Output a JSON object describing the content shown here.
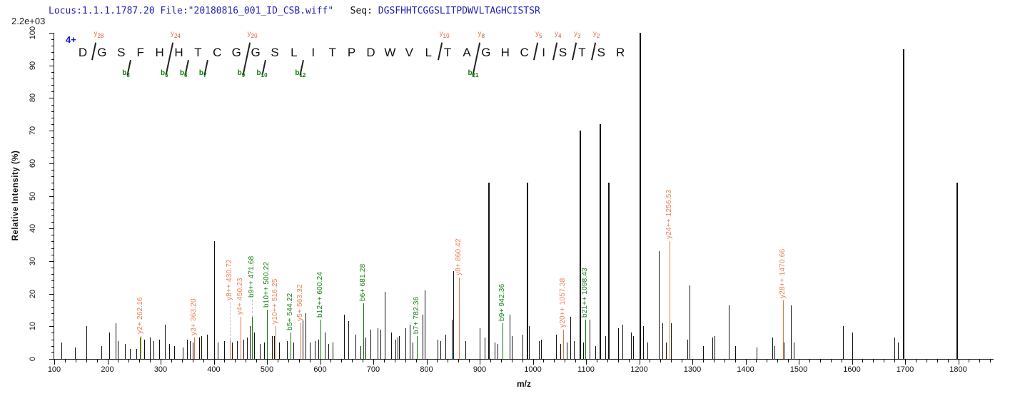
{
  "header": {
    "locus": "Locus:1.1.1.1787.20 File:\"20180816_001_ID_CSB.wiff\"",
    "seq_label": "Seq:",
    "sequence": "DGSFHHTCGGSLITPDWVLTAGHCISTSR"
  },
  "chart_data": {
    "type": "bar",
    "subtype": "ms2_peptide_fragmentation_spectrum",
    "title": "",
    "xlabel": "m/z",
    "ylabel": "Relative  Intensity  (%)",
    "intensity_scale": "2.2e+03",
    "precursor_charge": "4+",
    "peptide": "DGSFHHTCGGSLITPDWVLTAGHCISTSR",
    "xlim": [
      100,
      1865
    ],
    "ylim": [
      0,
      100
    ],
    "x_major_ticks": {
      "start": 100,
      "end": 1800,
      "step": 100
    },
    "x_minor_tick_step": 20,
    "y_major_tick_step": 10,
    "y_minor_tick_step": 2,
    "grid": "off",
    "colors": {
      "peak": "#111111",
      "y_ion_line": "#e07840",
      "y_ion_text": "#ee8055",
      "b_ion_line": "#0e7a0e",
      "b_ion_text": "#158015",
      "header_blue": "#2323b8",
      "charge_blue": "#1515d6",
      "leader": "#b9c2d2"
    },
    "sequence_markers": {
      "y_ions": [
        {
          "after_residue": 1,
          "ion": "y",
          "num": "28"
        },
        {
          "after_residue": 5,
          "ion": "y",
          "num": "24"
        },
        {
          "after_residue": 9,
          "ion": "y",
          "num": "20"
        },
        {
          "after_residue": 19,
          "ion": "y",
          "num": "10"
        },
        {
          "after_residue": 21,
          "ion": "y",
          "num": "8"
        },
        {
          "after_residue": 24,
          "ion": "y",
          "num": "5"
        },
        {
          "after_residue": 25,
          "ion": "y",
          "num": "4"
        },
        {
          "after_residue": 26,
          "ion": "y",
          "num": "3"
        },
        {
          "after_residue": 27,
          "ion": "y",
          "num": "2"
        }
      ],
      "b_ions": [
        {
          "after_residue": 3,
          "ion": "b",
          "num": "3"
        },
        {
          "after_residue": 5,
          "ion": "b",
          "num": "5"
        },
        {
          "after_residue": 6,
          "ion": "b",
          "num": "6"
        },
        {
          "after_residue": 7,
          "ion": "b",
          "num": "7"
        },
        {
          "after_residue": 9,
          "ion": "b",
          "num": "9"
        },
        {
          "after_residue": 10,
          "ion": "b",
          "num": "10"
        },
        {
          "after_residue": 12,
          "ion": "b",
          "num": "12"
        },
        {
          "after_residue": 21,
          "ion": "b",
          "num": "21"
        }
      ]
    },
    "labeled_peaks": [
      {
        "label": "y2+ 262.16",
        "mz": 262.16,
        "intensity": 7,
        "series": "y",
        "leader": 0
      },
      {
        "label": "y3+ 363.20",
        "mz": 363.2,
        "intensity": 6.5,
        "series": "y",
        "leader": 0
      },
      {
        "label": "y8++ 430.72",
        "mz": 430.72,
        "intensity": 6,
        "series": "y",
        "leader": 52
      },
      {
        "label": "y4+ 450.23",
        "mz": 450.23,
        "intensity": 13,
        "series": "y",
        "leader": 0
      },
      {
        "label": "b9++ 471.68",
        "mz": 471.68,
        "intensity": 13,
        "series": "b",
        "leader": 24
      },
      {
        "label": "b10++ 500.22",
        "mz": 500.22,
        "intensity": 15,
        "series": "b",
        "leader": 0
      },
      {
        "label": "y10++ 516.25",
        "mz": 516.25,
        "intensity": 10,
        "series": "y",
        "leader": 0
      },
      {
        "label": "b5+ 544.22",
        "mz": 544.22,
        "intensity": 8,
        "series": "b",
        "leader": 0
      },
      {
        "label": "y5+ 563.32",
        "mz": 563.32,
        "intensity": 11,
        "series": "y",
        "leader": 0
      },
      {
        "label": "b12++ 600.24",
        "mz": 600.24,
        "intensity": 12,
        "series": "b",
        "leader": 0
      },
      {
        "label": "b6+ 681.28",
        "mz": 681.28,
        "intensity": 17,
        "series": "b",
        "leader": 0
      },
      {
        "label": "b7+ 782.36",
        "mz": 782.36,
        "intensity": 7,
        "series": "b",
        "leader": 0
      },
      {
        "label": "y8+ 860.42",
        "mz": 860.42,
        "intensity": 25,
        "series": "y",
        "leader": 0
      },
      {
        "label": "b9+ 942.36",
        "mz": 942.36,
        "intensity": 11,
        "series": "b",
        "leader": 0
      },
      {
        "label": "y20++ 1057.38",
        "mz": 1057.38,
        "intensity": 9,
        "series": "y",
        "leader": 0
      },
      {
        "label": "b21++ 1098.43",
        "mz": 1098.43,
        "intensity": 12,
        "series": "b",
        "leader": 0
      },
      {
        "label": "y24++ 1256.53",
        "mz": 1256.53,
        "intensity": 36,
        "series": "y",
        "leader": 0
      },
      {
        "label": "y28++ 1470.66",
        "mz": 1470.66,
        "intensity": 18,
        "series": "y",
        "leader": 0
      }
    ],
    "extra_colored_peaks": [
      {
        "mz": 261.1,
        "intensity": 6.5,
        "series": "b"
      }
    ],
    "unlabeled_peaks": [
      [
        113,
        5
      ],
      [
        139,
        3.5
      ],
      [
        160,
        10
      ],
      [
        188,
        4
      ],
      [
        204,
        8
      ],
      [
        216,
        11
      ],
      [
        219,
        5.5
      ],
      [
        233,
        4.5
      ],
      [
        242,
        3
      ],
      [
        255,
        3
      ],
      [
        269,
        6
      ],
      [
        280,
        6.5
      ],
      [
        287,
        5.5
      ],
      [
        297,
        6
      ],
      [
        308,
        10.5
      ],
      [
        316,
        4.5
      ],
      [
        325,
        4
      ],
      [
        341,
        3.5
      ],
      [
        349,
        6
      ],
      [
        355,
        5.5
      ],
      [
        360,
        5
      ],
      [
        372,
        6.5
      ],
      [
        377,
        7
      ],
      [
        387,
        7.5
      ],
      [
        400,
        36
      ],
      [
        407,
        5
      ],
      [
        420,
        5.5
      ],
      [
        434,
        5
      ],
      [
        443,
        5.5
      ],
      [
        456,
        6
      ],
      [
        463,
        6.5
      ],
      [
        468,
        10
      ],
      [
        476,
        8
      ],
      [
        486,
        4.5
      ],
      [
        494,
        5
      ],
      [
        509,
        7
      ],
      [
        513,
        7
      ],
      [
        523,
        5
      ],
      [
        537,
        5.5
      ],
      [
        550,
        5
      ],
      [
        567,
        12
      ],
      [
        573,
        14
      ],
      [
        580,
        5
      ],
      [
        590,
        5.5
      ],
      [
        596,
        6
      ],
      [
        609,
        8
      ],
      [
        616,
        4.5
      ],
      [
        624,
        5
      ],
      [
        645,
        13.5
      ],
      [
        653,
        11.5
      ],
      [
        667,
        7.5
      ],
      [
        676,
        4
      ],
      [
        685,
        6.5
      ],
      [
        695,
        9
      ],
      [
        708,
        9.5
      ],
      [
        713,
        9
      ],
      [
        722,
        20.5
      ],
      [
        734,
        8
      ],
      [
        741,
        6
      ],
      [
        745,
        6.5
      ],
      [
        748,
        7
      ],
      [
        761,
        9.5
      ],
      [
        768,
        10.5
      ],
      [
        774,
        5
      ],
      [
        792,
        13.5
      ],
      [
        797,
        21
      ],
      [
        821,
        6
      ],
      [
        826,
        5.5
      ],
      [
        835,
        7.5
      ],
      [
        848,
        12
      ],
      [
        851,
        27
      ],
      [
        873,
        5.5
      ],
      [
        900,
        9.5
      ],
      [
        909,
        6.5
      ],
      [
        916,
        54
      ],
      [
        928,
        5
      ],
      [
        934,
        4.5
      ],
      [
        956,
        13.5
      ],
      [
        960,
        7
      ],
      [
        981,
        7.5
      ],
      [
        988,
        54
      ],
      [
        993,
        10
      ],
      [
        1011,
        5.5
      ],
      [
        1015,
        6
      ],
      [
        1044,
        7.5
      ],
      [
        1052,
        4.5
      ],
      [
        1064,
        5
      ],
      [
        1071,
        13
      ],
      [
        1077,
        5.5
      ],
      [
        1088,
        70
      ],
      [
        1095,
        5
      ],
      [
        1107,
        12
      ],
      [
        1117,
        4
      ],
      [
        1125,
        72
      ],
      [
        1136,
        7
      ],
      [
        1141,
        54
      ],
      [
        1160,
        9.5
      ],
      [
        1169,
        10.5
      ],
      [
        1184,
        8
      ],
      [
        1188,
        7
      ],
      [
        1200,
        100
      ],
      [
        1208,
        10
      ],
      [
        1215,
        5
      ],
      [
        1237,
        33
      ],
      [
        1243,
        11
      ],
      [
        1251,
        5
      ],
      [
        1260,
        11
      ],
      [
        1290,
        6
      ],
      [
        1295,
        22.5
      ],
      [
        1320,
        4
      ],
      [
        1337,
        6.5
      ],
      [
        1341,
        7
      ],
      [
        1368,
        16.5
      ],
      [
        1381,
        4
      ],
      [
        1421,
        3.5
      ],
      [
        1450,
        6.5
      ],
      [
        1455,
        4
      ],
      [
        1472,
        5
      ],
      [
        1485,
        16.5
      ],
      [
        1490,
        5
      ],
      [
        1583,
        10
      ],
      [
        1600,
        8
      ],
      [
        1680,
        6.5
      ],
      [
        1686,
        5
      ],
      [
        1696,
        95
      ],
      [
        1797,
        54
      ]
    ]
  }
}
